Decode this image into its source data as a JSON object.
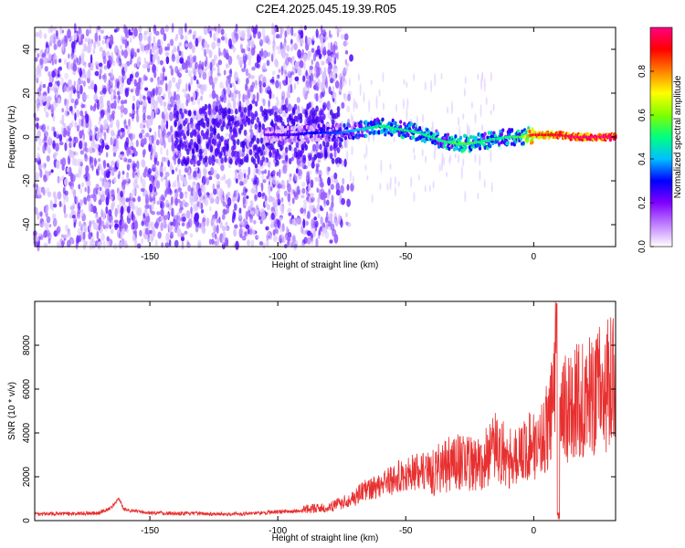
{
  "page": {
    "title": "C2E4.2025.045.19.39.R05"
  },
  "colors": {
    "snr_line": "#e83030",
    "ridge_peak": "#ff1020",
    "ridge_mid": "#00d8c0",
    "ridge_low": "#3a00e8",
    "scatter": "#8a3cff"
  },
  "chart_data": [
    {
      "type": "heatmap",
      "title": "C2E4.2025.045.19.39.R05",
      "xlabel": "Height of straight line (km)",
      "ylabel": "Frequency (Hz)",
      "xlim": [
        -195,
        32
      ],
      "ylim": [
        -50,
        50
      ],
      "x_ticks": [
        -150,
        -100,
        -50,
        0
      ],
      "y_ticks": [
        -40,
        -20,
        0,
        20,
        40
      ],
      "x_tick_labels": [
        "-150",
        "-100",
        "-50",
        "0"
      ],
      "y_tick_labels": [
        "-40",
        "-20",
        "0",
        "20",
        "40"
      ],
      "colorbar": {
        "label": "Normalized spectral amplitude",
        "range": [
          0.0,
          1.0
        ],
        "ticks": [
          0.0,
          0.2,
          0.4,
          0.6,
          0.8
        ],
        "tick_labels": [
          "0.0",
          "0.2",
          "0.4",
          "0.6",
          "0.8"
        ],
        "colormap": [
          "#ffffff",
          "#c080ff",
          "#8000ff",
          "#0000ff",
          "#00c0ff",
          "#00ff80",
          "#80ff00",
          "#ffff00",
          "#ff8000",
          "#ff0000",
          "#ff0080"
        ]
      },
      "ridge": {
        "x": [
          -105,
          -95,
          -85,
          -75,
          -70,
          -65,
          -60,
          -55,
          -50,
          -45,
          -40,
          -35,
          -30,
          -25,
          -20,
          -15,
          -10,
          -5,
          0,
          5,
          10,
          15,
          20,
          25,
          30
        ],
        "y": [
          1,
          1,
          2,
          2,
          3,
          4,
          5,
          4,
          3,
          2,
          0,
          -2,
          -3,
          -3,
          -2,
          -1,
          0,
          0,
          1,
          1,
          1,
          0,
          0,
          0,
          0
        ],
        "amplitude": [
          0.2,
          0.25,
          0.3,
          0.35,
          0.4,
          0.45,
          0.5,
          0.5,
          0.5,
          0.5,
          0.5,
          0.5,
          0.55,
          0.55,
          0.5,
          0.5,
          0.5,
          0.55,
          0.95,
          0.9,
          0.95,
          1.0,
          1.0,
          1.0,
          1.0
        ]
      }
    },
    {
      "type": "line",
      "xlabel": "Height of straight line (km)",
      "ylabel": "SNR (10 * v/v)",
      "xlim": [
        -195,
        32
      ],
      "ylim": [
        0,
        10000
      ],
      "x_ticks": [
        -150,
        -100,
        -50,
        0
      ],
      "y_ticks": [
        0,
        2000,
        4000,
        6000,
        8000
      ],
      "x_tick_labels": [
        "-150",
        "-100",
        "-50",
        "0"
      ],
      "y_tick_labels": [
        "0",
        "2000",
        "4000",
        "6000",
        "8000"
      ],
      "series": [
        {
          "x": [
            -195,
            -180,
            -170,
            -165,
            -162,
            -160,
            -150,
            -140,
            -130,
            -120,
            -110,
            -100,
            -90,
            -80,
            -75,
            -70,
            -65,
            -60,
            -55,
            -50,
            -45,
            -40,
            -35,
            -30,
            -25,
            -20,
            -15,
            -10,
            -5,
            0,
            3,
            6,
            8,
            9,
            10,
            12,
            15,
            20,
            25,
            30,
            32
          ],
          "y": [
            300,
            320,
            350,
            600,
            1000,
            500,
            350,
            330,
            320,
            300,
            330,
            400,
            450,
            500,
            700,
            900,
            1200,
            1400,
            1600,
            1800,
            1900,
            2000,
            2200,
            2500,
            2300,
            2400,
            3000,
            2600,
            2700,
            3200,
            3300,
            4000,
            5200,
            9900,
            3900,
            4500,
            4800,
            5000,
            5300,
            5600,
            5700
          ]
        }
      ]
    }
  ]
}
